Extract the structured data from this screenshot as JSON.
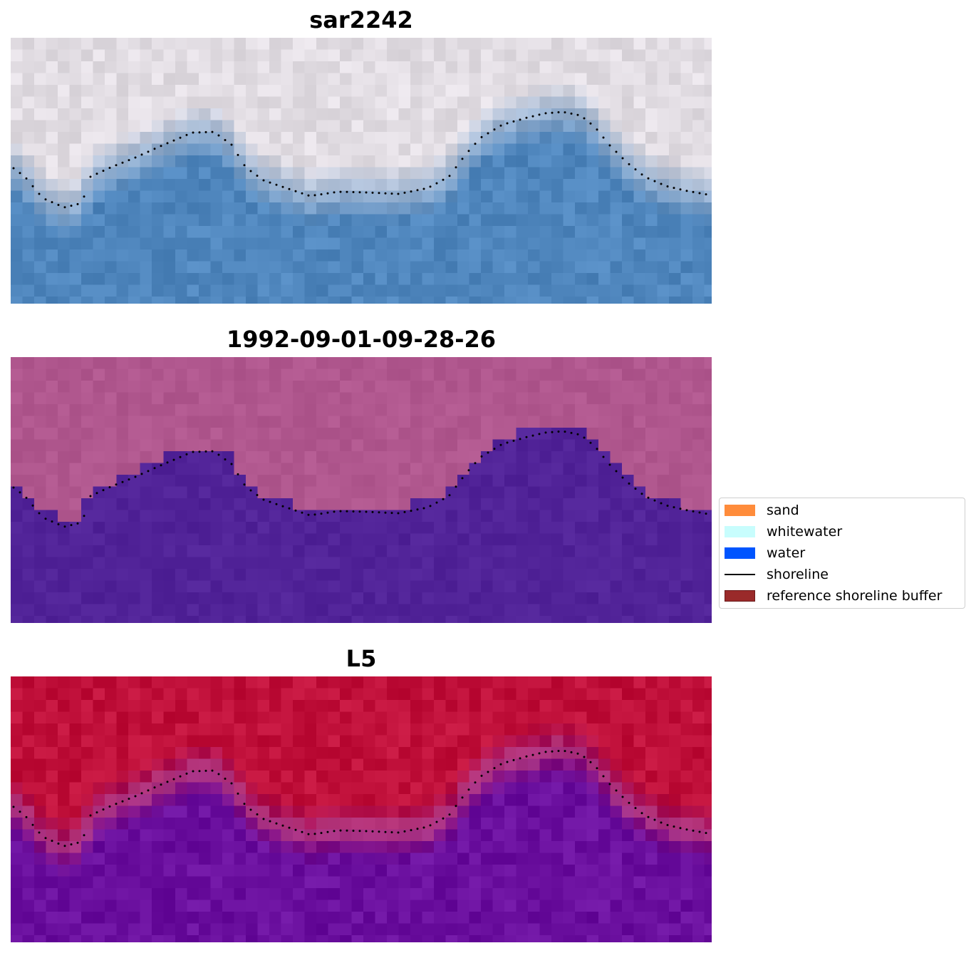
{
  "panels": [
    {
      "title": "sar2242",
      "kind": "rgb"
    },
    {
      "title": "1992-09-01-09-28-26",
      "kind": "classified"
    },
    {
      "title": "L5",
      "kind": "probability"
    }
  ],
  "legend": [
    {
      "label": "sand",
      "color": "#ff8c3b",
      "type": "patch"
    },
    {
      "label": "whitewater",
      "color": "#c8fdfd",
      "type": "patch"
    },
    {
      "label": "water",
      "color": "#0055ff",
      "type": "patch"
    },
    {
      "label": "shoreline",
      "color": "#000000",
      "type": "line"
    },
    {
      "label": "reference shoreline buffer",
      "color": "#9a2a2a",
      "type": "patch"
    }
  ],
  "colors": {
    "land_rgb": "#e2dde3",
    "water_rgb": "#4f86bd",
    "land_classified": "#b0578e",
    "water_classified": "#512398",
    "land_probability": "#c0103a",
    "water_probability": "#6a0f9e"
  }
}
